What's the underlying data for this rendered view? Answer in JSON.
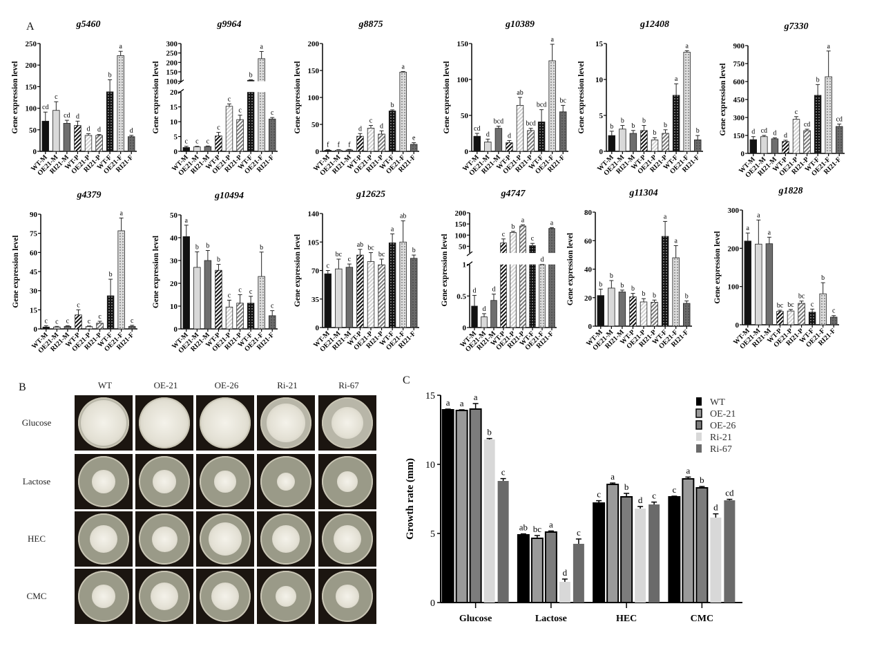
{
  "panels": {
    "a": "A",
    "b": "B",
    "c": "C"
  },
  "fill_colors": {
    "M": [
      "#111111",
      "#d9d9d9",
      "#6e6e6e"
    ],
    "P": [
      "#111111",
      "#d0d0d0",
      "#7a7a7a"
    ],
    "F": [
      "#111111",
      "#dcdcdc",
      "#6a6a6a"
    ]
  },
  "chart_data": [
    {
      "type": "bar",
      "title": "g5460",
      "ylabel": "Gene expression level",
      "categories": [
        "WT-M",
        "OE21-M",
        "RI21-M",
        "WT-P",
        "OE21-P",
        "RI21-P",
        "WT-F",
        "OE21-F",
        "RI21-F"
      ],
      "values": [
        70,
        95,
        65,
        60,
        37,
        37,
        138,
        222,
        34
      ],
      "errors": [
        21,
        20,
        7,
        10,
        4,
        2,
        28,
        10,
        3
      ],
      "letters": [
        "cd",
        "c",
        "cd",
        "d",
        "d",
        "d",
        "b",
        "a",
        "d"
      ],
      "ylim": [
        0,
        250
      ],
      "yticks": [
        0,
        50,
        100,
        150,
        200,
        250
      ]
    },
    {
      "type": "bar",
      "title": "g9964",
      "ylabel": "Gene expression level",
      "categories": [
        "WT-M",
        "OE21-M",
        "RI21-M",
        "WT-P",
        "OE21-P",
        "RI21-P",
        "WT-F",
        "OE21-F",
        "RI21-F"
      ],
      "values": [
        1.3,
        1.5,
        1.6,
        5.2,
        15.2,
        10.7,
        105,
        220,
        10.9
      ],
      "errors": [
        0.4,
        0.2,
        0.2,
        1.2,
        0.8,
        1.5,
        3,
        38,
        0.5
      ],
      "letters": [
        "c",
        "c",
        "c",
        "c",
        "c",
        "c",
        "b",
        "a",
        "c"
      ],
      "axis_break": {
        "lower": [
          0,
          20
        ],
        "upper": [
          100,
          300
        ]
      },
      "yticks": [
        0,
        5,
        10,
        15,
        20,
        100,
        150,
        200,
        250,
        300
      ]
    },
    {
      "type": "bar",
      "title": "g8875",
      "ylabel": "Gene expression level",
      "categories": [
        "WT-M",
        "OE21-M",
        "RI21-M",
        "WT-P",
        "OE21-P",
        "RI21-P",
        "WT-F",
        "OE21-F",
        "RI21-F"
      ],
      "values": [
        2,
        2,
        2.5,
        28,
        43,
        32,
        75,
        147,
        13
      ],
      "errors": [
        1,
        1,
        1,
        5,
        5,
        6,
        2,
        1,
        3
      ],
      "letters": [
        "f",
        "f",
        "f",
        "d",
        "c",
        "d",
        "b",
        "a",
        "e"
      ],
      "ylim": [
        0,
        200
      ],
      "yticks": [
        0,
        50,
        100,
        150,
        200
      ]
    },
    {
      "type": "bar",
      "title": "g10389",
      "ylabel": "Gene expression level",
      "categories": [
        "WT-M",
        "OE21-M",
        "RI21-M",
        "WT-P",
        "OE21-P",
        "RI21-P",
        "WT-F",
        "OE21-F",
        "RI21-F"
      ],
      "values": [
        21,
        13,
        32,
        12,
        64,
        29,
        41,
        126,
        55
      ],
      "errors": [
        4,
        4,
        3,
        3,
        11,
        3,
        17,
        23,
        9
      ],
      "letters": [
        "cd",
        "d",
        "bcd",
        "d",
        "ab",
        "bcd",
        "bcd",
        "a",
        "bc"
      ],
      "ylim": [
        0,
        150
      ],
      "yticks": [
        0,
        50,
        100,
        150
      ]
    },
    {
      "type": "bar",
      "title": "g12408",
      "ylabel": "Gene expression level",
      "categories": [
        "WT-M",
        "OE21-M",
        "RI21-M",
        "WT-P",
        "OE21-P",
        "RI21-P",
        "WT-F",
        "OE21-F",
        "RI21-F"
      ],
      "values": [
        2.2,
        3.1,
        2.5,
        2.9,
        1.6,
        2.5,
        7.8,
        13.8,
        1.6
      ],
      "errors": [
        0.6,
        0.5,
        0.4,
        0.7,
        0.3,
        0.5,
        1.6,
        0.2,
        0.6
      ],
      "letters": [
        "b",
        "b",
        "b",
        "b",
        "b",
        "b",
        "a",
        "a",
        "b"
      ],
      "ylim": [
        0,
        15
      ],
      "yticks": [
        0,
        5,
        10,
        15
      ]
    },
    {
      "type": "bar",
      "title": "g7330",
      "ylabel": "Gene expression level",
      "categories": [
        "WT-M",
        "OE21-M",
        "RI21-M",
        "WT-P",
        "OE21-P",
        "RI21-P",
        "WT-F",
        "OE21-F",
        "RI21-F"
      ],
      "values": [
        115,
        140,
        122,
        100,
        285,
        190,
        485,
        640,
        225
      ],
      "errors": [
        25,
        10,
        8,
        10,
        22,
        12,
        90,
        215,
        20
      ],
      "letters": [
        "d",
        "cd",
        "d",
        "d",
        "c",
        "cd",
        "b",
        "a",
        "cd"
      ],
      "ylim": [
        0,
        900
      ],
      "yticks": [
        0,
        150,
        300,
        450,
        600,
        750,
        900
      ]
    },
    {
      "type": "bar",
      "title": "g4379",
      "ylabel": "Gene expression level",
      "categories": [
        "WT-M",
        "OE21-M",
        "RI21-M",
        "WT-P",
        "OE21-P",
        "RI21-P",
        "WT-F",
        "OE21-F",
        "RI21-F"
      ],
      "values": [
        1.5,
        1.5,
        2,
        11,
        1.8,
        4.5,
        26,
        77,
        2
      ],
      "errors": [
        1,
        0.5,
        0.5,
        4,
        0.5,
        1.5,
        13,
        10,
        0.8
      ],
      "letters": [
        "c",
        "c",
        "c",
        "c",
        "c",
        "c",
        "b",
        "a",
        "c"
      ],
      "ylim": [
        0,
        90
      ],
      "yticks": [
        0,
        15,
        30,
        45,
        60,
        75,
        90
      ]
    },
    {
      "type": "bar",
      "title": "g10494",
      "ylabel": "Gene expression level",
      "categories": [
        "WT-M",
        "OE21-M",
        "RI21-M",
        "WT-P",
        "OE21-P",
        "RI21-P",
        "WT-F",
        "OE21-F",
        "RI21-F"
      ],
      "values": [
        40.5,
        27,
        30,
        25.7,
        9.6,
        11.3,
        11.3,
        23,
        5.8
      ],
      "errors": [
        5,
        6.8,
        4.4,
        2.6,
        3,
        3.7,
        3,
        10.7,
        2.2
      ],
      "letters": [
        "a",
        "b",
        "b",
        "b",
        "c",
        "c",
        "c",
        "b",
        "c"
      ],
      "ylim": [
        0,
        50
      ],
      "yticks": [
        0,
        10,
        20,
        30,
        40,
        50
      ]
    },
    {
      "type": "bar",
      "title": "g12625",
      "ylabel": "Gene expression level",
      "categories": [
        "WT-M",
        "OE21-M",
        "RI21-M",
        "WT-P",
        "OE21-P",
        "RI21-P",
        "WT-F",
        "OE21-F",
        "RI21-F"
      ],
      "values": [
        66,
        72,
        74,
        89,
        81,
        77,
        104,
        105,
        85
      ],
      "errors": [
        4,
        12,
        4,
        7,
        11,
        7,
        11,
        26,
        4
      ],
      "letters": [
        "c",
        "bc",
        "c",
        "ab",
        "bc",
        "bc",
        "a",
        "ab",
        "b"
      ],
      "ylim": [
        0,
        140
      ],
      "yticks": [
        0,
        35,
        70,
        105,
        140
      ]
    },
    {
      "type": "bar",
      "title": "g4747",
      "ylabel": "Gene expression level",
      "categories": [
        "WT-M",
        "OE21-M",
        "RI21-M",
        "WT-P",
        "OE21-P",
        "RI21-P",
        "WT-F",
        "OE21-F",
        "RI21-F"
      ],
      "values": [
        0.34,
        0.17,
        0.43,
        65,
        112,
        141,
        53,
        8,
        130
      ],
      "errors": [
        0.17,
        0.05,
        0.1,
        18,
        5,
        5,
        10,
        10,
        4
      ],
      "letters": [
        "d",
        "d",
        "d",
        "c",
        "b",
        "a",
        "c",
        "d",
        "a"
      ],
      "axis_break": {
        "lower": [
          0,
          1.0
        ],
        "upper": [
          20,
          200
        ]
      },
      "yticks": [
        0.0,
        0.5,
        1.0,
        50,
        100,
        150,
        200
      ]
    },
    {
      "type": "bar",
      "title": "g11304",
      "ylabel": "Gene expression level",
      "categories": [
        "WT-M",
        "OE21-M",
        "RI21-M",
        "WT-P",
        "OE21-P",
        "RI21-P",
        "WT-F",
        "OE21-F",
        "RI21-F"
      ],
      "values": [
        21.5,
        26.7,
        24,
        20.6,
        17,
        16.8,
        63,
        48,
        16
      ],
      "errors": [
        4.5,
        5.3,
        1.3,
        2.4,
        2.3,
        1.5,
        10.5,
        8.5,
        1.7
      ],
      "letters": [
        "b",
        "b",
        "b",
        "b",
        "b",
        "b",
        "a",
        "a",
        "b"
      ],
      "ylim": [
        0,
        80
      ],
      "yticks": [
        0,
        20,
        40,
        60,
        80
      ]
    },
    {
      "type": "bar",
      "title": "g1828",
      "ylabel": "Gene expression level",
      "categories": [
        "WT-M",
        "OE21-M",
        "RI21-M",
        "WT-P",
        "OE21-P",
        "RI21-P",
        "WT-F",
        "OE21-F",
        "RI21-F"
      ],
      "values": [
        219,
        211,
        212,
        35,
        36,
        56,
        33,
        81,
        20
      ],
      "errors": [
        21,
        63,
        17,
        3,
        4,
        6,
        8,
        29,
        4
      ],
      "letters": [
        "a",
        "a",
        "a",
        "bc",
        "bc",
        "bc",
        "c",
        "b",
        "c"
      ],
      "ylim": [
        0,
        300
      ],
      "yticks": [
        0,
        100,
        200,
        300
      ]
    },
    {
      "type": "bar",
      "ylabel": "Growth rate (mm)",
      "categories": [
        "Glucose",
        "Lactose",
        "HEC",
        "CMC"
      ],
      "ylim": [
        0,
        15
      ],
      "yticks": [
        0,
        5,
        10,
        15
      ],
      "legend": "top-right",
      "series": [
        {
          "name": "WT",
          "color": "#000000",
          "values": [
            13.95,
            4.9,
            7.2,
            7.65
          ],
          "errors": [
            0.05,
            0.07,
            0.17,
            0.05
          ],
          "letters": [
            "a",
            "ab",
            "c",
            "c"
          ]
        },
        {
          "name": "OE-21",
          "color": "#9a9a9a",
          "values": [
            13.9,
            4.65,
            8.55,
            8.95
          ],
          "errors": [
            0.05,
            0.2,
            0.1,
            0.13
          ],
          "letters": [
            "a",
            "bc",
            "a",
            "a"
          ]
        },
        {
          "name": "OE-26",
          "color": "#7c7c7c",
          "values": [
            14.0,
            5.1,
            7.65,
            8.3
          ],
          "errors": [
            0.4,
            0.08,
            0.25,
            0.1
          ],
          "letters": [
            "a",
            "a",
            "b",
            "b"
          ]
        },
        {
          "name": "Ri-21",
          "color": "#d8d8d8",
          "values": [
            11.8,
            1.5,
            6.8,
            6.15
          ],
          "errors": [
            0.07,
            0.2,
            0.15,
            0.27
          ],
          "letters": [
            "b",
            "d",
            "d",
            "d"
          ]
        },
        {
          "name": "Ri-67",
          "color": "#6a6a6a",
          "values": [
            8.8,
            4.25,
            7.1,
            7.4
          ],
          "errors": [
            0.17,
            0.35,
            0.17,
            0.07
          ],
          "letters": [
            "c",
            "c",
            "c",
            "cd"
          ]
        }
      ]
    }
  ],
  "photos": {
    "columns": [
      "WT",
      "OE-21",
      "OE-26",
      "Ri-21",
      "Ri-67"
    ],
    "rows": [
      "Glucose",
      "Lactose",
      "HEC",
      "CMC"
    ],
    "colony_fraction": [
      [
        0.9,
        0.95,
        0.95,
        0.75,
        0.62
      ],
      [
        0.45,
        0.45,
        0.42,
        0.35,
        0.4
      ],
      [
        0.55,
        0.5,
        0.65,
        0.55,
        0.55
      ],
      [
        0.45,
        0.55,
        0.55,
        0.4,
        0.45
      ]
    ]
  }
}
